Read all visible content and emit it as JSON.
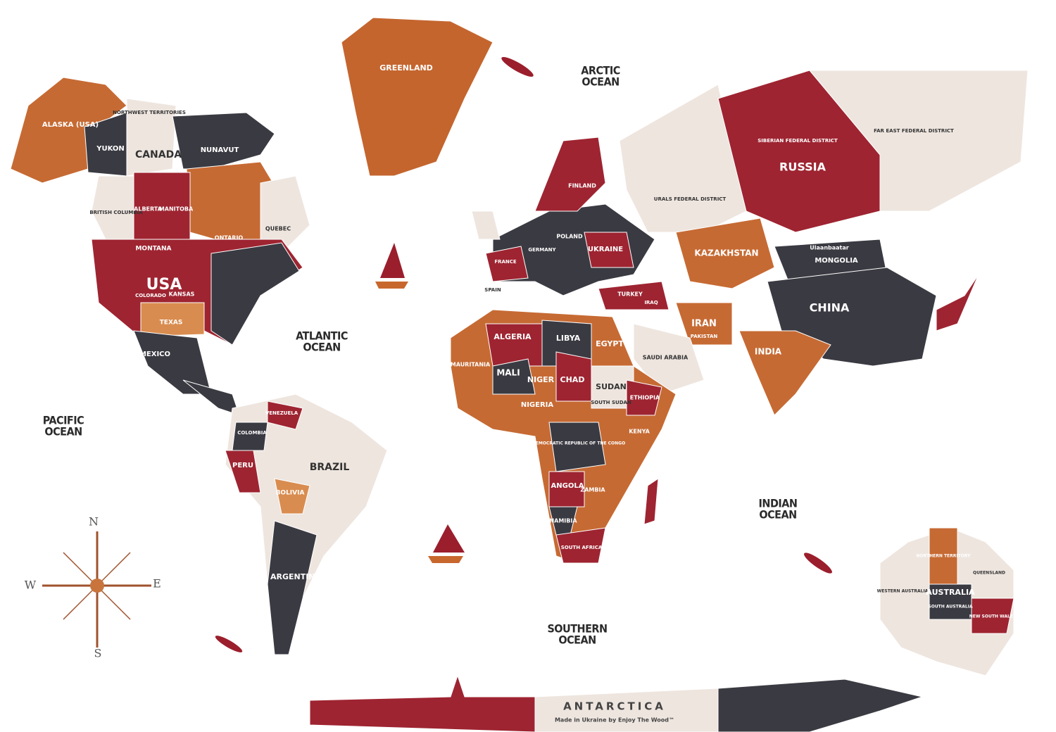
{
  "regions": [
    "GREENLAND",
    "ALASKA (USA)",
    "YUKON",
    "NORTHWEST TERRITORIES",
    "CANADA",
    "NUNAVUT",
    "BRITISH COLUMBIA",
    "ALBERTA",
    "MANITOBA",
    "ONTARIO",
    "QUEBEC",
    "MONTANA",
    "USA",
    "COLORADO",
    "KANSAS",
    "TEXAS",
    "MEXICO",
    "VENEZUELA",
    "COLOMBIA",
    "PERU",
    "BRAZIL",
    "BOLIVIA",
    "ARGENTINA",
    "FINLAND",
    "POLAND",
    "GERMANY",
    "FRANCE",
    "SPAIN",
    "UKRAINE",
    "TURKEY",
    "ALGERIA",
    "LIBYA",
    "EGYPT",
    "MAURITANIA",
    "MALI",
    "NIGER",
    "CHAD",
    "SUDAN",
    "NIGERIA",
    "SOUTH SUDAN",
    "ETHIOPIA",
    "KENYA",
    "DEMOCRATIC REPUBLIC OF THE CONGO",
    "ANGOLA",
    "ZAMBIA",
    "NAMIBIA",
    "SOUTH AFRICA",
    "SAUDI ARABIA",
    "IRAQ",
    "IRAN",
    "KAZAKHSTAN",
    "URALS FEDERAL DISTRICT",
    "RUSSIA",
    "SIBERIAN FEDERAL DISTRICT",
    "FAR EAST FEDERAL DISTRICT",
    "MONGOLIA",
    "Ulaanbaatar",
    "PAKISTAN",
    "CHINA",
    "INDIA",
    "NORTHERN TERRITORY",
    "QUEENSLAND",
    "WESTERN AUSTRALIA",
    "AUSTRALIA",
    "SOUTH AUSTRALIA",
    "NEW SOUTH WALES"
  ],
  "oceans": [
    [
      "ARCTIC",
      "OCEAN"
    ],
    [
      "ATLANTIC",
      "OCEAN"
    ],
    [
      "PACIFIC",
      "OCEAN"
    ],
    [
      "INDIAN",
      "OCEAN"
    ],
    [
      "SOUTHERN",
      "OCEAN"
    ]
  ],
  "compass": [
    "N",
    "E",
    "S",
    "W"
  ],
  "antarctica": {
    "name": "ANTARCTICA",
    "credit": "Made in Ukraine by Enjoy The Wood™"
  }
}
